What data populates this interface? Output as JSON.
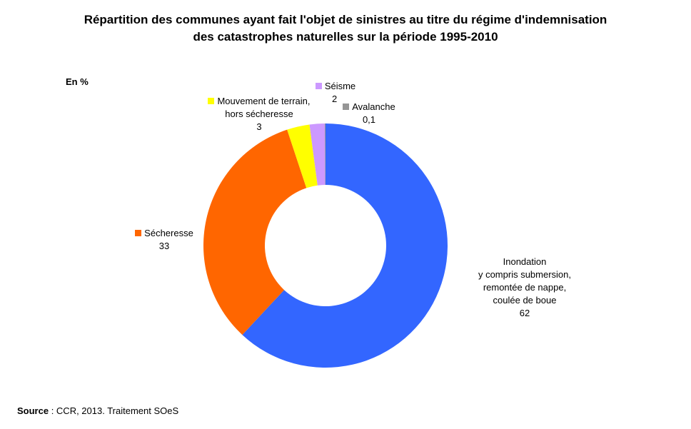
{
  "title_line1": "Répartition des communes ayant fait l'objet de sinistres au titre du régime d'indemnisation",
  "title_line2": "des catastrophes naturelles sur la période 1995-2010",
  "unit": "En %",
  "source_label": "Source",
  "source_text": " : CCR, 2013. Traitement SOeS",
  "chart_data": {
    "type": "pie",
    "donut": true,
    "unit": "%",
    "slices": [
      {
        "lines": [
          "Inondation",
          "y compris submersion,",
          "remontée de nappe,",
          "coulée de boue"
        ],
        "value": 62,
        "label": "62",
        "color": "#3366ff"
      },
      {
        "lines": [
          "Sécheresse"
        ],
        "value": 33,
        "label": "33",
        "color": "#ff6600"
      },
      {
        "lines": [
          "Mouvement de terrain,",
          "hors sécheresse"
        ],
        "value": 3,
        "label": "3",
        "color": "#ffff00"
      },
      {
        "lines": [
          "Séisme"
        ],
        "value": 2,
        "label": "2",
        "color": "#cc99ff"
      },
      {
        "lines": [
          "Avalanche"
        ],
        "value": 0.1,
        "label": "0,1",
        "color": "#969696"
      }
    ]
  }
}
